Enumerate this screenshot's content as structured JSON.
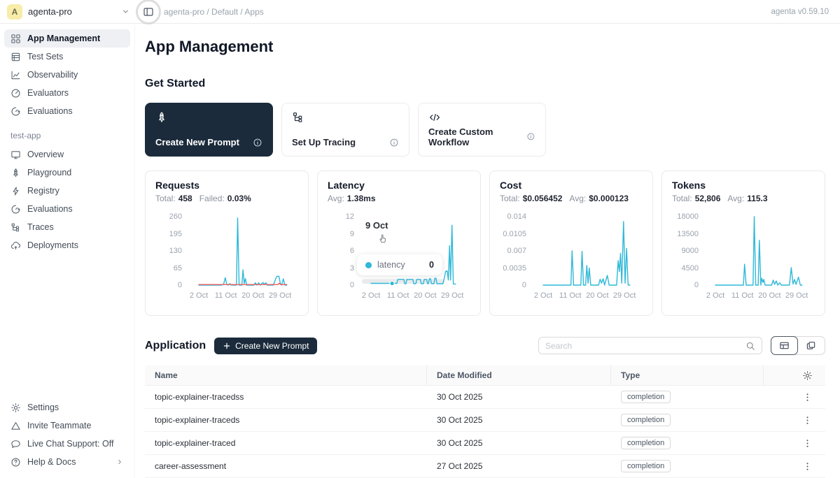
{
  "topbar": {
    "workspace": "agenta-pro",
    "avatar_letter": "A",
    "breadcrumb": "agenta-pro / Default / Apps",
    "version": "agenta v0.59.10"
  },
  "sidebar": {
    "sections": [
      {
        "items": [
          {
            "label": "App Management",
            "icon": "grid",
            "active": true
          },
          {
            "label": "Test Sets",
            "icon": "list"
          },
          {
            "label": "Observability",
            "icon": "chart"
          },
          {
            "label": "Evaluators",
            "icon": "gauge"
          },
          {
            "label": "Evaluations",
            "icon": "speed"
          }
        ]
      },
      {
        "title": "test-app",
        "items": [
          {
            "label": "Overview",
            "icon": "monitor"
          },
          {
            "label": "Playground",
            "icon": "rocket"
          },
          {
            "label": "Registry",
            "icon": "lightning"
          },
          {
            "label": "Evaluations",
            "icon": "speed"
          },
          {
            "label": "Traces",
            "icon": "tree"
          },
          {
            "label": "Deployments",
            "icon": "cloud"
          }
        ]
      },
      {
        "items": [
          {
            "label": "Settings",
            "icon": "gear"
          },
          {
            "label": "Invite Teammate",
            "icon": "triangle"
          },
          {
            "label": "Live Chat Support: Off",
            "icon": "chat"
          },
          {
            "label": "Help & Docs",
            "icon": "help",
            "chevron": true
          }
        ]
      }
    ]
  },
  "main": {
    "title": "App Management",
    "get_started": {
      "heading": "Get Started",
      "cards": [
        {
          "label": "Create New Prompt",
          "icon": "rocket",
          "dark": true
        },
        {
          "label": "Set Up Tracing",
          "icon": "tree"
        },
        {
          "label": "Create Custom Workflow",
          "icon": "code"
        }
      ]
    },
    "application": {
      "heading": "Application",
      "create_label": "Create New Prompt",
      "search_placeholder": "Search",
      "table": {
        "columns": [
          "Name",
          "Date Modified",
          "Type"
        ],
        "rows": [
          {
            "name": "topic-explainer-tracedss",
            "date": "30 Oct 2025",
            "type": "completion"
          },
          {
            "name": "topic-explainer-traceds",
            "date": "30 Oct 2025",
            "type": "completion"
          },
          {
            "name": "topic-explainer-traced",
            "date": "30 Oct 2025",
            "type": "completion"
          },
          {
            "name": "career-assessment",
            "date": "27 Oct 2025",
            "type": "completion"
          }
        ]
      }
    }
  },
  "tooltip": {
    "date": "9 Oct",
    "series": "latency",
    "value": "0"
  },
  "colors": {
    "accent": "#2fb8d8",
    "failed": "#f25c5c",
    "dark_navy": "#1b2b3b"
  },
  "chart_data": [
    {
      "type": "line",
      "title": "Requests",
      "stats": [
        {
          "label": "Total:",
          "value": "458"
        },
        {
          "label": "Failed:",
          "value": "0.03%"
        }
      ],
      "ymax": 260,
      "yticks": [
        0,
        65,
        130,
        195,
        260
      ],
      "xticks": [
        {
          "label": "2 Oct",
          "day": 2
        },
        {
          "label": "11 Oct",
          "day": 11
        },
        {
          "label": "20 Oct",
          "day": 20
        },
        {
          "label": "29 Oct",
          "day": 29
        }
      ],
      "series": [
        {
          "name": "requests",
          "color": "#2fb8d8",
          "points": [
            [
              2,
              0
            ],
            [
              9.5,
              0
            ],
            [
              10.2,
              2
            ],
            [
              10.8,
              28
            ],
            [
              11.3,
              2
            ],
            [
              11.8,
              0
            ],
            [
              12.3,
              6
            ],
            [
              12.8,
              0
            ],
            [
              14.5,
              0
            ],
            [
              14.9,
              255
            ],
            [
              15.4,
              0
            ],
            [
              16.3,
              0
            ],
            [
              16.7,
              58
            ],
            [
              17.1,
              6
            ],
            [
              17.5,
              25
            ],
            [
              17.9,
              0
            ],
            [
              20.3,
              0
            ],
            [
              20.8,
              9
            ],
            [
              21.3,
              0
            ],
            [
              21.9,
              9
            ],
            [
              22.4,
              0
            ],
            [
              23.3,
              10
            ],
            [
              23.8,
              3
            ],
            [
              24.3,
              9
            ],
            [
              24.8,
              0
            ],
            [
              26.8,
              0
            ],
            [
              27.4,
              20
            ],
            [
              27.9,
              33
            ],
            [
              28.6,
              34
            ],
            [
              29.1,
              6
            ],
            [
              29.5,
              0
            ],
            [
              30.1,
              24
            ],
            [
              30.6,
              0
            ],
            [
              31.2,
              0
            ]
          ]
        },
        {
          "name": "failed",
          "color": "#f25c5c",
          "points": [
            [
              2,
              2
            ],
            [
              27.8,
              2
            ],
            [
              28.3,
              2
            ],
            [
              28.7,
              7
            ],
            [
              29.2,
              2
            ],
            [
              31.2,
              2
            ]
          ]
        }
      ]
    },
    {
      "type": "line",
      "title": "Latency",
      "stats": [
        {
          "label": "Avg:",
          "value": "1.38ms"
        }
      ],
      "ymax": 12,
      "yticks": [
        0,
        3,
        6,
        9,
        12
      ],
      "xticks": [
        {
          "label": "2 Oct",
          "day": 2
        },
        {
          "label": "11 Oct",
          "day": 11
        },
        {
          "label": "20 Oct",
          "day": 20
        },
        {
          "label": "29 Oct",
          "day": 29
        }
      ],
      "hover_band": true,
      "marker": {
        "day": 9,
        "value": 0.3
      },
      "series": [
        {
          "name": "latency",
          "color": "#2fb8d8",
          "points": [
            [
              2,
              0.3
            ],
            [
              10.6,
              0.3
            ],
            [
              10.9,
              1
            ],
            [
              12.9,
              1
            ],
            [
              13.2,
              0.25
            ],
            [
              13.6,
              0.25
            ],
            [
              13.9,
              1
            ],
            [
              15.9,
              1
            ],
            [
              16.2,
              0.25
            ],
            [
              16.9,
              0.25
            ],
            [
              17.2,
              1
            ],
            [
              18.4,
              1
            ],
            [
              18.7,
              0.25
            ],
            [
              19.4,
              0.25
            ],
            [
              19.7,
              1
            ],
            [
              20.5,
              1
            ],
            [
              20.8,
              0.25
            ],
            [
              21.1,
              0.25
            ],
            [
              21.4,
              1.1
            ],
            [
              21.8,
              1.1
            ],
            [
              22.1,
              0.25
            ],
            [
              22.9,
              0.25
            ],
            [
              23.2,
              1.2
            ],
            [
              23.6,
              1.2
            ],
            [
              23.9,
              0.25
            ],
            [
              25.9,
              0.25
            ],
            [
              26.4,
              1.3
            ],
            [
              26.8,
              2.4
            ],
            [
              27.3,
              2.5
            ],
            [
              27.7,
              0.9
            ],
            [
              28.1,
              6.9
            ],
            [
              28.45,
              0.9
            ],
            [
              28.9,
              10.5
            ],
            [
              29.35,
              0.2
            ],
            [
              30.1,
              0.2
            ]
          ]
        }
      ]
    },
    {
      "type": "line",
      "title": "Cost",
      "stats": [
        {
          "label": "Total:",
          "value": "$0.056452"
        },
        {
          "label": "Avg:",
          "value": "$0.000123"
        }
      ],
      "ymax": 0.014,
      "yticks": [
        0,
        0.0035,
        0.007,
        0.0105,
        0.014
      ],
      "xticks": [
        {
          "label": "2 Oct",
          "day": 2
        },
        {
          "label": "11 Oct",
          "day": 11
        },
        {
          "label": "20 Oct",
          "day": 20
        },
        {
          "label": "29 Oct",
          "day": 29
        }
      ],
      "series": [
        {
          "name": "cost",
          "color": "#2fb8d8",
          "points": [
            [
              2,
              0
            ],
            [
              11.2,
              0
            ],
            [
              11.6,
              0.007
            ],
            [
              12.1,
              0
            ],
            [
              14.5,
              0
            ],
            [
              14.9,
              0.0069
            ],
            [
              15.4,
              0
            ],
            [
              16.1,
              0
            ],
            [
              16.5,
              0.004
            ],
            [
              16.9,
              0.0004
            ],
            [
              17.3,
              0.0035
            ],
            [
              17.8,
              0
            ],
            [
              20.4,
              0
            ],
            [
              20.9,
              0.0012
            ],
            [
              21.4,
              0.0004
            ],
            [
              21.9,
              0.0013
            ],
            [
              22.4,
              0
            ],
            [
              23.3,
              0.002
            ],
            [
              23.9,
              0
            ],
            [
              26.4,
              0
            ],
            [
              26.9,
              0.005
            ],
            [
              27.3,
              0.0028
            ],
            [
              27.7,
              0.0065
            ],
            [
              28.1,
              0.0004
            ],
            [
              28.7,
              0.013
            ],
            [
              29.2,
              0.0004
            ],
            [
              29.7,
              0.0075
            ],
            [
              30.2,
              0
            ],
            [
              30.8,
              0
            ]
          ]
        }
      ]
    },
    {
      "type": "line",
      "title": "Tokens",
      "stats": [
        {
          "label": "Total:",
          "value": "52,806"
        },
        {
          "label": "Avg:",
          "value": "115.3"
        }
      ],
      "ymax": 18000,
      "yticks": [
        0,
        4500,
        9000,
        13500,
        18000
      ],
      "xticks": [
        {
          "label": "2 Oct",
          "day": 2
        },
        {
          "label": "11 Oct",
          "day": 11
        },
        {
          "label": "20 Oct",
          "day": 20
        },
        {
          "label": "29 Oct",
          "day": 29
        }
      ],
      "series": [
        {
          "name": "tokens",
          "color": "#2fb8d8",
          "points": [
            [
              2,
              0
            ],
            [
              11.3,
              0
            ],
            [
              11.7,
              5500
            ],
            [
              12.2,
              0
            ],
            [
              14.5,
              0
            ],
            [
              14.9,
              18000
            ],
            [
              15.4,
              0
            ],
            [
              16.2,
              0
            ],
            [
              16.6,
              11800
            ],
            [
              17.1,
              0
            ],
            [
              17.4,
              1800
            ],
            [
              17.8,
              700
            ],
            [
              18.1,
              1500
            ],
            [
              18.5,
              0
            ],
            [
              20.7,
              0
            ],
            [
              21.2,
              1300
            ],
            [
              21.7,
              200
            ],
            [
              22.2,
              1100
            ],
            [
              22.7,
              0
            ],
            [
              23.4,
              600
            ],
            [
              23.9,
              0
            ],
            [
              26.6,
              0
            ],
            [
              27.2,
              4600
            ],
            [
              27.8,
              300
            ],
            [
              28.3,
              1500
            ],
            [
              28.8,
              200
            ],
            [
              29.6,
              2100
            ],
            [
              30.2,
              0
            ],
            [
              30.8,
              0
            ]
          ]
        }
      ]
    }
  ]
}
